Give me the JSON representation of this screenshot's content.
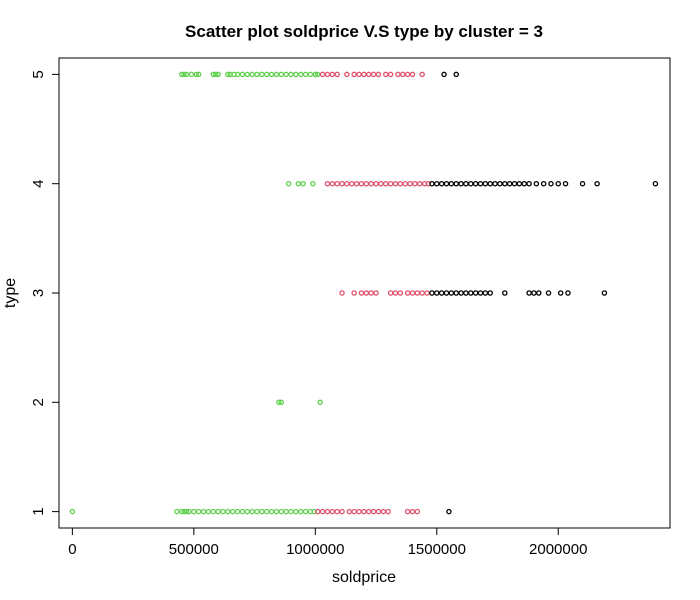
{
  "chart_data": {
    "type": "scatter",
    "title": "Scatter plot soldprice V.S type by cluster = 3",
    "xlabel": "soldprice",
    "ylabel": "type",
    "xlim": [
      -55000,
      2460000
    ],
    "ylim": [
      0.85,
      5.15
    ],
    "xticks": [
      0,
      500000,
      1000000,
      1500000,
      2000000
    ],
    "xtick_labels": [
      "0",
      "500000",
      "1000000",
      "1500000",
      "2000000"
    ],
    "yticks": [
      1,
      2,
      3,
      4,
      5
    ],
    "ytick_labels": [
      "1",
      "2",
      "3",
      "4",
      "5"
    ],
    "grid": false,
    "legend": "none",
    "colors": {
      "cluster_green": "#61D04F",
      "cluster_red": "#DF536B",
      "cluster_black": "#000000"
    },
    "series": [
      {
        "color": "#61D04F",
        "points": [
          {
            "y": 5,
            "x": [
              450000,
              460000,
              470000,
              490000,
              510000,
              520000,
              580000,
              590000,
              600000,
              640000,
              650000,
              665000,
              680000,
              700000,
              720000,
              740000,
              760000,
              780000,
              800000,
              820000,
              840000,
              860000,
              880000,
              900000,
              920000,
              940000,
              960000,
              980000,
              1000000,
              1010000
            ]
          },
          {
            "y": 4,
            "x": [
              890000,
              930000,
              950000,
              990000
            ]
          },
          {
            "y": 2,
            "x": [
              850000,
              860000,
              1020000
            ]
          },
          {
            "y": 1,
            "x": [
              0,
              430000,
              450000,
              460000,
              470000,
              480000,
              500000,
              520000,
              540000,
              560000,
              580000,
              600000,
              620000,
              640000,
              660000,
              680000,
              700000,
              720000,
              740000,
              760000,
              780000,
              800000,
              820000,
              840000,
              860000,
              880000,
              900000,
              920000,
              940000,
              960000,
              980000,
              995000
            ]
          }
        ]
      },
      {
        "color": "#DF536B",
        "points": [
          {
            "y": 5,
            "x": [
              1030000,
              1050000,
              1070000,
              1090000,
              1130000,
              1160000,
              1180000,
              1200000,
              1220000,
              1240000,
              1260000,
              1290000,
              1310000,
              1340000,
              1360000,
              1380000,
              1400000,
              1440000
            ]
          },
          {
            "y": 4,
            "x": [
              1050000,
              1070000,
              1090000,
              1110000,
              1130000,
              1150000,
              1170000,
              1190000,
              1210000,
              1230000,
              1250000,
              1270000,
              1290000,
              1310000,
              1330000,
              1350000,
              1370000,
              1390000,
              1410000,
              1430000,
              1450000,
              1465000
            ]
          },
          {
            "y": 3,
            "x": [
              1110000,
              1160000,
              1190000,
              1210000,
              1230000,
              1250000,
              1310000,
              1330000,
              1350000,
              1380000,
              1400000,
              1420000,
              1440000,
              1460000
            ]
          },
          {
            "y": 1,
            "x": [
              1010000,
              1030000,
              1050000,
              1070000,
              1090000,
              1110000,
              1140000,
              1160000,
              1180000,
              1200000,
              1220000,
              1240000,
              1260000,
              1280000,
              1300000,
              1380000,
              1400000,
              1420000
            ]
          }
        ]
      },
      {
        "color": "#000000",
        "points": [
          {
            "y": 5,
            "x": [
              1530000,
              1580000
            ]
          },
          {
            "y": 4,
            "x": [
              1480000,
              1500000,
              1520000,
              1540000,
              1560000,
              1580000,
              1600000,
              1620000,
              1640000,
              1660000,
              1680000,
              1700000,
              1720000,
              1740000,
              1760000,
              1780000,
              1800000,
              1820000,
              1840000,
              1860000,
              1880000,
              1910000,
              1940000,
              1970000,
              2000000,
              2030000,
              2100000,
              2160000,
              2400000
            ]
          },
          {
            "y": 3,
            "x": [
              1480000,
              1500000,
              1520000,
              1540000,
              1560000,
              1580000,
              1600000,
              1620000,
              1640000,
              1660000,
              1680000,
              1700000,
              1720000,
              1780000,
              1880000,
              1900000,
              1920000,
              1960000,
              2010000,
              2040000,
              2190000
            ]
          },
          {
            "y": 1,
            "x": [
              1550000
            ]
          }
        ]
      }
    ]
  }
}
